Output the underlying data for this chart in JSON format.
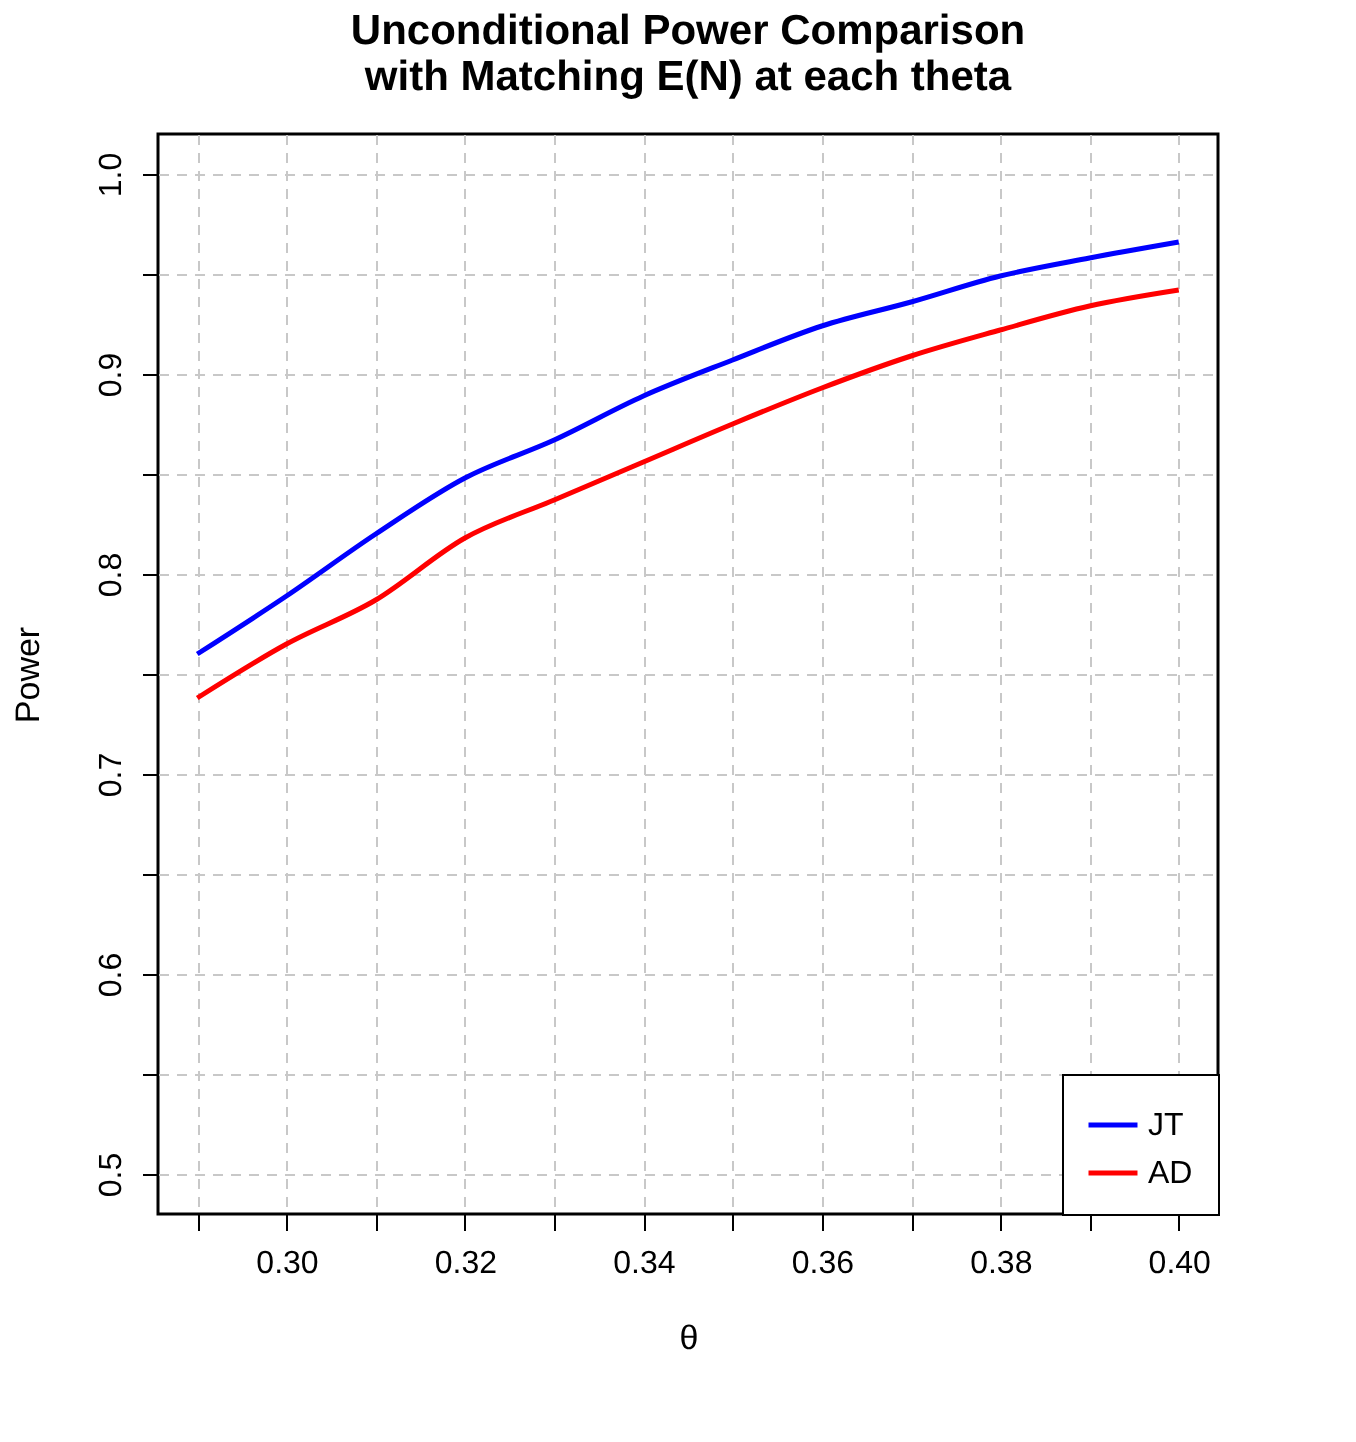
{
  "chart_data": {
    "type": "line",
    "title": [
      "Unconditional Power Comparison",
      "with Matching E(N) at each theta"
    ],
    "xlabel": "θ",
    "ylabel": "Power",
    "x": [
      0.29,
      0.3,
      0.31,
      0.32,
      0.33,
      0.34,
      0.35,
      0.36,
      0.37,
      0.38,
      0.39,
      0.4
    ],
    "series": [
      {
        "name": "JT",
        "color": "#0000ff",
        "values": [
          0.76,
          0.789,
          0.82,
          0.848,
          0.867,
          0.889,
          0.907,
          0.924,
          0.936,
          0.949,
          0.958,
          0.966
        ]
      },
      {
        "name": "AD",
        "color": "#ff0000",
        "values": [
          0.738,
          0.765,
          0.787,
          0.818,
          0.837,
          0.856,
          0.875,
          0.893,
          0.909,
          0.922,
          0.934,
          0.942
        ]
      }
    ],
    "xlim": [
      0.2856,
      0.4044
    ],
    "ylim": [
      0.48,
      1.02
    ],
    "xticks": [
      {
        "value": 0.29,
        "label": null
      },
      {
        "value": 0.3,
        "label": "0.30"
      },
      {
        "value": 0.31,
        "label": null
      },
      0.32,
      {
        "value": 0.33,
        "label": null
      },
      0.34,
      {
        "value": 0.35,
        "label": null
      },
      0.36,
      {
        "value": 0.37,
        "label": null
      },
      0.38,
      {
        "value": 0.39,
        "label": null
      },
      {
        "value": 0.4,
        "label": "0.40"
      }
    ],
    "yticks": [
      0.5,
      {
        "value": 0.55,
        "label": null
      },
      0.6,
      {
        "value": 0.65,
        "label": null
      },
      0.7,
      {
        "value": 0.75,
        "label": null
      },
      0.8,
      {
        "value": 0.85,
        "label": null
      },
      0.9,
      {
        "value": 0.95,
        "label": null
      },
      {
        "value": 1,
        "label": "1.0"
      }
    ],
    "grid": true,
    "legend": "bottom right",
    "line_style": "solid",
    "marker": "none"
  }
}
